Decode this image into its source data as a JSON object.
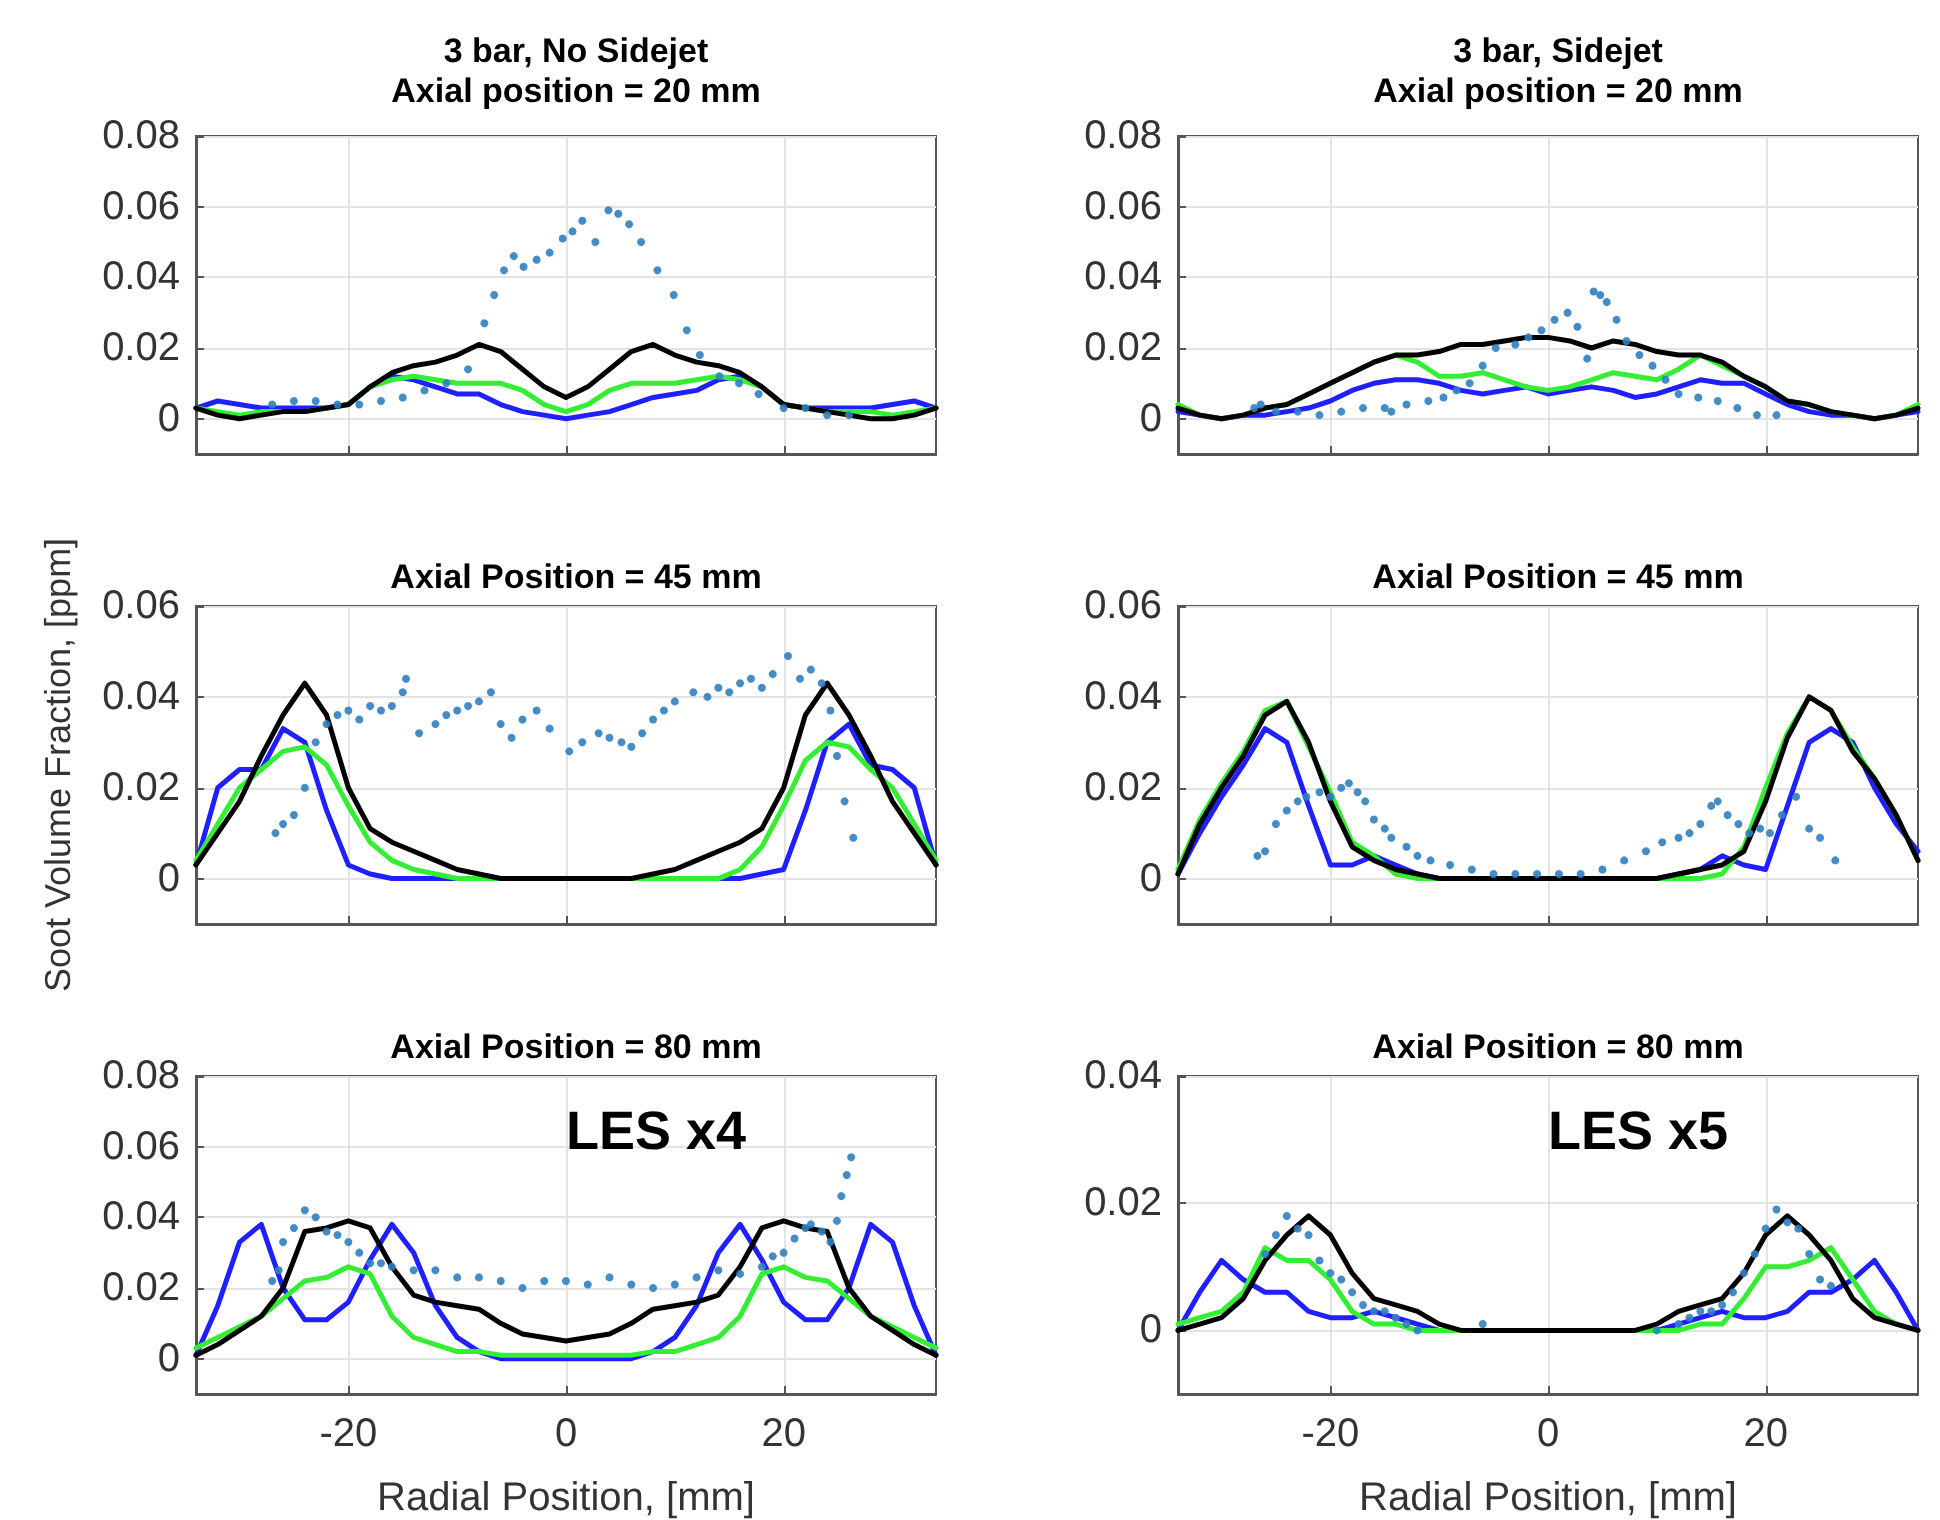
{
  "chart_data": [
    {
      "type": "line",
      "title": "3 bar, No Sidejet",
      "subtitle": "Axial position = 20 mm",
      "xlim": [
        -34,
        34
      ],
      "xticks": [
        -20,
        0,
        20
      ],
      "ylim": [
        -0.01,
        0.08
      ],
      "yticks": [
        0,
        0.02,
        0.04,
        0.06,
        0.08
      ],
      "grid": true,
      "tick_labels": "y",
      "x": [
        -34,
        -32,
        -30,
        -28,
        -26,
        -24,
        -22,
        -20,
        -18,
        -16,
        -14,
        -12,
        -10,
        -8,
        -6,
        -4,
        -2,
        0,
        2,
        4,
        6,
        8,
        10,
        12,
        14,
        16,
        18,
        20,
        22,
        24,
        26,
        28,
        30,
        32,
        34
      ],
      "series": [
        {
          "type": "scatter",
          "marker": "circle",
          "color": "#3080c0",
          "x": [
            -27,
            -25,
            -23,
            -21,
            -19,
            -17,
            -15,
            -13,
            -11,
            -9,
            -7.5,
            -6.6,
            -5.7,
            -4.8,
            -3.9,
            -2.7,
            -1.5,
            -0.3,
            0.6,
            1.5,
            2.7,
            3.9,
            4.8,
            5.8,
            6.9,
            8.4,
            9.9,
            11.1,
            12.3,
            14.1,
            15.9,
            17.7,
            20,
            22,
            24,
            26
          ],
          "values": [
            0.004,
            0.005,
            0.005,
            0.004,
            0.004,
            0.005,
            0.006,
            0.008,
            0.01,
            0.014,
            0.027,
            0.035,
            0.042,
            0.046,
            0.043,
            0.045,
            0.047,
            0.051,
            0.053,
            0.056,
            0.05,
            0.059,
            0.058,
            0.055,
            0.05,
            0.042,
            0.035,
            0.025,
            0.018,
            0.012,
            0.01,
            0.007,
            0.003,
            0.003,
            0.001,
            0.001
          ]
        },
        {
          "type": "line",
          "marker": "none",
          "color": "#1f1fff",
          "values": [
            0.003,
            0.005,
            0.004,
            0.003,
            0.003,
            0.003,
            0.003,
            0.004,
            0.009,
            0.012,
            0.011,
            0.009,
            0.007,
            0.007,
            0.004,
            0.002,
            0.001,
            0,
            0.001,
            0.002,
            0.004,
            0.006,
            0.007,
            0.008,
            0.011,
            0.012,
            0.009,
            0.004,
            0.003,
            0.003,
            0.003,
            0.003,
            0.004,
            0.005,
            0.003
          ]
        },
        {
          "type": "line",
          "marker": "none",
          "color": "#33ee33",
          "values": [
            0.003,
            0.002,
            0.001,
            0.002,
            0.002,
            0.002,
            0.003,
            0.004,
            0.009,
            0.011,
            0.012,
            0.011,
            0.01,
            0.01,
            0.01,
            0.008,
            0.004,
            0.002,
            0.004,
            0.008,
            0.01,
            0.01,
            0.01,
            0.011,
            0.012,
            0.011,
            0.009,
            0.004,
            0.003,
            0.002,
            0.002,
            0.002,
            0.001,
            0.002,
            0.003
          ]
        },
        {
          "type": "line",
          "marker": "none",
          "color": "#000000",
          "values": [
            0.003,
            0.001,
            0,
            0.001,
            0.002,
            0.002,
            0.003,
            0.004,
            0.009,
            0.013,
            0.015,
            0.016,
            0.018,
            0.021,
            0.019,
            0.014,
            0.009,
            0.006,
            0.009,
            0.014,
            0.019,
            0.021,
            0.018,
            0.016,
            0.015,
            0.013,
            0.009,
            0.004,
            0.003,
            0.002,
            0.001,
            0,
            0,
            0.001,
            0.003
          ]
        }
      ]
    },
    {
      "type": "line",
      "title": "3 bar, Sidejet",
      "subtitle": "Axial position = 20 mm",
      "xlim": [
        -34,
        34
      ],
      "xticks": [
        -20,
        0,
        20
      ],
      "ylim": [
        -0.01,
        0.08
      ],
      "yticks": [
        0,
        0.02,
        0.04,
        0.06,
        0.08
      ],
      "grid": true,
      "tick_labels": "y",
      "x": [
        -34,
        -32,
        -30,
        -28,
        -26,
        -24,
        -22,
        -20,
        -18,
        -16,
        -14,
        -12,
        -10,
        -8,
        -6,
        -4,
        -2,
        0,
        2,
        4,
        6,
        8,
        10,
        12,
        14,
        16,
        18,
        20,
        22,
        24,
        26,
        28,
        30,
        32,
        34
      ],
      "series": [
        {
          "type": "scatter",
          "marker": "circle",
          "color": "#3080c0",
          "x": [
            -27,
            -26.4,
            -25,
            -23,
            -21,
            -19,
            -17,
            -15,
            -14.4,
            -13,
            -11,
            -9.6,
            -8.4,
            -7.2,
            -6,
            -4.8,
            -3,
            -1.8,
            -0.6,
            0.6,
            1.8,
            2.7,
            3.6,
            4.2,
            4.8,
            5.4,
            6.3,
            7.2,
            8.4,
            9.6,
            10.8,
            12,
            13.8,
            15.6,
            17.4,
            19.2,
            21
          ],
          "values": [
            0.003,
            0.004,
            0.002,
            0.002,
            0.001,
            0.002,
            0.003,
            0.003,
            0.002,
            0.004,
            0.005,
            0.006,
            0.008,
            0.01,
            0.015,
            0.02,
            0.021,
            0.023,
            0.025,
            0.028,
            0.03,
            0.026,
            0.017,
            0.036,
            0.035,
            0.033,
            0.028,
            0.022,
            0.018,
            0.015,
            0.011,
            0.007,
            0.006,
            0.005,
            0.003,
            0.001,
            0.001
          ]
        },
        {
          "type": "line",
          "marker": "none",
          "color": "#1f1fff",
          "values": [
            0.002,
            0.001,
            0,
            0.001,
            0.001,
            0.002,
            0.003,
            0.005,
            0.008,
            0.01,
            0.011,
            0.011,
            0.01,
            0.008,
            0.007,
            0.008,
            0.009,
            0.007,
            0.008,
            0.009,
            0.008,
            0.006,
            0.007,
            0.009,
            0.011,
            0.01,
            0.01,
            0.007,
            0.004,
            0.002,
            0.001,
            0.001,
            0,
            0.001,
            0.002
          ]
        },
        {
          "type": "line",
          "marker": "none",
          "color": "#33ee33",
          "values": [
            0.004,
            0.001,
            0,
            0.001,
            0.003,
            0.004,
            0.007,
            0.01,
            0.013,
            0.016,
            0.018,
            0.016,
            0.012,
            0.012,
            0.013,
            0.011,
            0.009,
            0.008,
            0.009,
            0.011,
            0.013,
            0.012,
            0.011,
            0.014,
            0.018,
            0.015,
            0.012,
            0.009,
            0.005,
            0.004,
            0.002,
            0.001,
            0,
            0.001,
            0.004
          ]
        },
        {
          "type": "line",
          "marker": "none",
          "color": "#000000",
          "values": [
            0.003,
            0.001,
            0,
            0.001,
            0.003,
            0.004,
            0.007,
            0.01,
            0.013,
            0.016,
            0.018,
            0.018,
            0.019,
            0.021,
            0.021,
            0.022,
            0.023,
            0.023,
            0.022,
            0.02,
            0.022,
            0.021,
            0.019,
            0.018,
            0.018,
            0.016,
            0.012,
            0.009,
            0.005,
            0.004,
            0.002,
            0.001,
            0,
            0.001,
            0.003
          ]
        }
      ]
    },
    {
      "type": "line",
      "title": "Axial Position = 45 mm",
      "ylabel": "Soot Volume Fraction, [ppm]",
      "xlim": [
        -34,
        34
      ],
      "xticks": [
        -20,
        0,
        20
      ],
      "ylim": [
        -0.01,
        0.06
      ],
      "yticks": [
        0,
        0.02,
        0.04,
        0.06
      ],
      "grid": true,
      "tick_labels": "y",
      "x": [
        -34,
        -32,
        -30,
        -28,
        -26,
        -24,
        -22,
        -20,
        -18,
        -16,
        -14,
        -12,
        -10,
        -8,
        -6,
        -4,
        -2,
        0,
        2,
        4,
        6,
        8,
        10,
        12,
        14,
        16,
        18,
        20,
        22,
        24,
        26,
        28,
        30,
        32,
        34
      ],
      "series": [
        {
          "type": "scatter",
          "marker": "circle",
          "color": "#3080c0",
          "x": [
            -26.7,
            -26,
            -25,
            -24,
            -23,
            -22,
            -21,
            -20,
            -19,
            -18,
            -17,
            -16,
            -15,
            -14.7,
            -13.5,
            -12,
            -11,
            -10,
            -9,
            -8,
            -6.9,
            -6,
            -5,
            -4,
            -2.7,
            -1.5,
            0.3,
            1.5,
            3,
            4,
            5.1,
            6,
            7,
            8,
            9,
            10,
            11.7,
            13,
            14,
            15,
            16,
            17,
            18,
            19,
            20.4,
            21.5,
            22.5,
            23.5,
            24.3,
            24.9,
            25.6,
            26.4
          ],
          "values": [
            0.01,
            0.012,
            0.014,
            0.02,
            0.03,
            0.034,
            0.036,
            0.037,
            0.035,
            0.038,
            0.037,
            0.038,
            0.041,
            0.044,
            0.032,
            0.034,
            0.036,
            0.037,
            0.038,
            0.039,
            0.041,
            0.034,
            0.031,
            0.035,
            0.037,
            0.033,
            0.028,
            0.03,
            0.032,
            0.031,
            0.03,
            0.029,
            0.032,
            0.035,
            0.037,
            0.039,
            0.041,
            0.04,
            0.042,
            0.041,
            0.043,
            0.044,
            0.042,
            0.045,
            0.049,
            0.044,
            0.046,
            0.043,
            0.037,
            0.027,
            0.017,
            0.009
          ]
        },
        {
          "type": "line",
          "marker": "none",
          "color": "#1f1fff",
          "values": [
            0.003,
            0.02,
            0.024,
            0.024,
            0.033,
            0.03,
            0.015,
            0.003,
            0.001,
            0,
            0,
            0,
            0,
            0,
            0,
            0,
            0,
            0,
            0,
            0,
            0,
            0,
            0,
            0,
            0,
            0,
            0.001,
            0.002,
            0.015,
            0.03,
            0.034,
            0.025,
            0.024,
            0.02,
            0.003
          ]
        },
        {
          "type": "line",
          "marker": "none",
          "color": "#33ee33",
          "values": [
            0.004,
            0.012,
            0.02,
            0.024,
            0.028,
            0.029,
            0.025,
            0.016,
            0.008,
            0.004,
            0.002,
            0.001,
            0,
            0,
            0,
            0,
            0,
            0,
            0,
            0,
            0,
            0,
            0,
            0,
            0,
            0.002,
            0.007,
            0.016,
            0.026,
            0.03,
            0.029,
            0.024,
            0.02,
            0.012,
            0.004
          ]
        },
        {
          "type": "line",
          "marker": "none",
          "color": "#000000",
          "values": [
            0.003,
            0.01,
            0.017,
            0.027,
            0.036,
            0.043,
            0.036,
            0.02,
            0.011,
            0.008,
            0.006,
            0.004,
            0.002,
            0.001,
            0,
            0,
            0,
            0,
            0,
            0,
            0,
            0.001,
            0.002,
            0.004,
            0.006,
            0.008,
            0.011,
            0.02,
            0.036,
            0.043,
            0.036,
            0.027,
            0.017,
            0.01,
            0.003
          ]
        }
      ]
    },
    {
      "type": "line",
      "title": "Axial Position = 45 mm",
      "xlim": [
        -34,
        34
      ],
      "xticks": [
        -20,
        0,
        20
      ],
      "ylim": [
        -0.01,
        0.06
      ],
      "yticks": [
        0,
        0.02,
        0.04,
        0.06
      ],
      "grid": true,
      "tick_labels": "y",
      "x": [
        -34,
        -32,
        -30,
        -28,
        -26,
        -24,
        -22,
        -20,
        -18,
        -16,
        -14,
        -12,
        -10,
        -8,
        -6,
        -4,
        -2,
        0,
        2,
        4,
        6,
        8,
        10,
        12,
        14,
        16,
        18,
        20,
        22,
        24,
        26,
        28,
        30,
        32,
        34
      ],
      "series": [
        {
          "type": "scatter",
          "marker": "circle",
          "color": "#3080c0",
          "x": [
            -26.7,
            -26,
            -25,
            -24,
            -23,
            -22.2,
            -21,
            -20,
            -19,
            -18.3,
            -17.5,
            -16.8,
            -16,
            -15,
            -14.4,
            -13,
            -12,
            -10.8,
            -9,
            -7,
            -5,
            -3,
            -1,
            1,
            3,
            5,
            7,
            9,
            10.5,
            12,
            13,
            14,
            15,
            15.6,
            16.5,
            17.5,
            18.5,
            19.5,
            20.4,
            21.5,
            22.8,
            24,
            25,
            26.4
          ],
          "values": [
            0.005,
            0.006,
            0.012,
            0.015,
            0.017,
            0.018,
            0.019,
            0.018,
            0.02,
            0.021,
            0.019,
            0.017,
            0.013,
            0.011,
            0.009,
            0.007,
            0.005,
            0.004,
            0.003,
            0.002,
            0.001,
            0.001,
            0.001,
            0.001,
            0.001,
            0.002,
            0.004,
            0.006,
            0.008,
            0.009,
            0.01,
            0.012,
            0.016,
            0.017,
            0.014,
            0.012,
            0.01,
            0.011,
            0.01,
            0.014,
            0.018,
            0.011,
            0.009,
            0.004
          ]
        },
        {
          "type": "line",
          "marker": "none",
          "color": "#1f1fff",
          "values": [
            0.001,
            0.01,
            0.018,
            0.025,
            0.033,
            0.03,
            0.016,
            0.003,
            0.003,
            0.005,
            0.003,
            0.001,
            0,
            0,
            0,
            0,
            0,
            0,
            0,
            0,
            0,
            0,
            0,
            0.001,
            0.002,
            0.005,
            0.003,
            0.002,
            0.016,
            0.03,
            0.033,
            0.03,
            0.02,
            0.012,
            0.006
          ]
        },
        {
          "type": "line",
          "marker": "none",
          "color": "#33ee33",
          "values": [
            0.002,
            0.013,
            0.021,
            0.028,
            0.037,
            0.039,
            0.029,
            0.019,
            0.008,
            0.005,
            0.001,
            0,
            0,
            0,
            0,
            0,
            0,
            0,
            0,
            0,
            0,
            0,
            0,
            0,
            0,
            0.001,
            0.007,
            0.02,
            0.032,
            0.04,
            0.037,
            0.029,
            0.022,
            0.014,
            0.004
          ]
        },
        {
          "type": "line",
          "marker": "none",
          "color": "#000000",
          "values": [
            0.001,
            0.012,
            0.02,
            0.027,
            0.036,
            0.039,
            0.03,
            0.017,
            0.007,
            0.004,
            0.002,
            0.001,
            0,
            0,
            0,
            0,
            0,
            0,
            0,
            0,
            0,
            0,
            0,
            0.001,
            0.002,
            0.003,
            0.006,
            0.017,
            0.031,
            0.04,
            0.037,
            0.028,
            0.022,
            0.014,
            0.004
          ]
        }
      ]
    },
    {
      "type": "line",
      "title": "Axial Position = 80 mm",
      "xlabel": "Radial Position, [mm]",
      "annotations": [
        "LES x4"
      ],
      "xlim": [
        -34,
        34
      ],
      "xticks": [
        -20,
        0,
        20
      ],
      "ylim": [
        -0.01,
        0.08
      ],
      "yticks": [
        0,
        0.02,
        0.04,
        0.06,
        0.08
      ],
      "grid": true,
      "x": [
        -34,
        -32,
        -30,
        -28,
        -26,
        -24,
        -22,
        -20,
        -18,
        -16,
        -14,
        -12,
        -10,
        -8,
        -6,
        -4,
        -2,
        0,
        2,
        4,
        6,
        8,
        10,
        12,
        14,
        16,
        18,
        20,
        22,
        24,
        26,
        28,
        30,
        32,
        34
      ],
      "series": [
        {
          "type": "scatter",
          "marker": "circle",
          "color": "#3080c0",
          "x": [
            -27,
            -26.4,
            -26,
            -25,
            -24,
            -23,
            -22,
            -21,
            -20,
            -19,
            -18,
            -17,
            -16,
            -14,
            -12,
            -10,
            -8,
            -6,
            -4,
            -2,
            0,
            2,
            4,
            6,
            8,
            10,
            12,
            14,
            16,
            18,
            19,
            20,
            21,
            22,
            22.5,
            23.5,
            24.3,
            24.9,
            25.3,
            25.8,
            26.2
          ],
          "values": [
            0.022,
            0.025,
            0.033,
            0.037,
            0.042,
            0.04,
            0.036,
            0.035,
            0.033,
            0.03,
            0.027,
            0.027,
            0.026,
            0.025,
            0.025,
            0.023,
            0.023,
            0.022,
            0.02,
            0.022,
            0.022,
            0.021,
            0.023,
            0.021,
            0.02,
            0.021,
            0.023,
            0.025,
            0.024,
            0.026,
            0.029,
            0.03,
            0.034,
            0.037,
            0.038,
            0.036,
            0.033,
            0.039,
            0.046,
            0.052,
            0.057
          ]
        },
        {
          "type": "line",
          "marker": "none",
          "color": "#1f1fff",
          "values": [
            0.001,
            0.015,
            0.033,
            0.038,
            0.02,
            0.011,
            0.011,
            0.016,
            0.028,
            0.038,
            0.03,
            0.015,
            0.006,
            0.002,
            0,
            0,
            0,
            0,
            0,
            0,
            0,
            0.002,
            0.006,
            0.015,
            0.03,
            0.038,
            0.028,
            0.016,
            0.011,
            0.011,
            0.02,
            0.038,
            0.033,
            0.015,
            0.001
          ]
        },
        {
          "type": "line",
          "marker": "none",
          "color": "#33ee33",
          "values": [
            0.003,
            0.006,
            0.009,
            0.012,
            0.017,
            0.022,
            0.023,
            0.026,
            0.024,
            0.012,
            0.006,
            0.004,
            0.002,
            0.002,
            0.001,
            0.001,
            0.001,
            0.001,
            0.001,
            0.001,
            0.001,
            0.002,
            0.002,
            0.004,
            0.006,
            0.012,
            0.024,
            0.026,
            0.023,
            0.022,
            0.017,
            0.012,
            0.009,
            0.006,
            0.003
          ]
        },
        {
          "type": "line",
          "marker": "none",
          "color": "#000000",
          "values": [
            0.001,
            0.004,
            0.008,
            0.012,
            0.02,
            0.036,
            0.037,
            0.039,
            0.037,
            0.026,
            0.018,
            0.016,
            0.015,
            0.014,
            0.01,
            0.007,
            0.006,
            0.005,
            0.006,
            0.007,
            0.01,
            0.014,
            0.015,
            0.016,
            0.018,
            0.026,
            0.037,
            0.039,
            0.037,
            0.036,
            0.02,
            0.012,
            0.008,
            0.004,
            0.001
          ]
        }
      ]
    },
    {
      "type": "line",
      "title": "Axial Position = 80 mm",
      "xlabel": "Radial Position, [mm]",
      "annotations": [
        "LES x5"
      ],
      "xlim": [
        -34,
        34
      ],
      "xticks": [
        -20,
        0,
        20
      ],
      "ylim": [
        -0.01,
        0.04
      ],
      "yticks": [
        0,
        0.02,
        0.04
      ],
      "grid": true,
      "x": [
        -34,
        -32,
        -30,
        -28,
        -26,
        -24,
        -22,
        -20,
        -18,
        -16,
        -14,
        -12,
        -10,
        -8,
        -6,
        -4,
        -2,
        0,
        2,
        4,
        6,
        8,
        10,
        12,
        14,
        16,
        18,
        20,
        22,
        24,
        26,
        28,
        30,
        32,
        34
      ],
      "series": [
        {
          "type": "scatter",
          "marker": "circle",
          "color": "#3080c0",
          "x": [
            -26,
            -25,
            -24,
            -23,
            -22,
            -21,
            -20,
            -19,
            -18,
            -17,
            -16,
            -15,
            -14,
            -13,
            -12,
            -6,
            10,
            12,
            13,
            14,
            15,
            16,
            17,
            18,
            19,
            20,
            21,
            22,
            23,
            24,
            25,
            26
          ],
          "values": [
            0.012,
            0.015,
            0.018,
            0.016,
            0.015,
            0.011,
            0.009,
            0.008,
            0.006,
            0.004,
            0.003,
            0.003,
            0.002,
            0.001,
            0,
            0.001,
            0,
            0.001,
            0.002,
            0.003,
            0.003,
            0.004,
            0.006,
            0.009,
            0.012,
            0.016,
            0.019,
            0.017,
            0.016,
            0.012,
            0.008,
            0.007
          ]
        },
        {
          "type": "line",
          "marker": "none",
          "color": "#1f1fff",
          "values": [
            0,
            0.006,
            0.011,
            0.008,
            0.006,
            0.006,
            0.003,
            0.002,
            0.002,
            0.003,
            0.002,
            0.001,
            0,
            0,
            0,
            0,
            0,
            0,
            0,
            0,
            0,
            0,
            0,
            0.001,
            0.002,
            0.003,
            0.002,
            0.002,
            0.003,
            0.006,
            0.006,
            0.008,
            0.011,
            0.006,
            0
          ]
        },
        {
          "type": "line",
          "marker": "none",
          "color": "#33ee33",
          "values": [
            0.001,
            0.002,
            0.003,
            0.006,
            0.013,
            0.011,
            0.011,
            0.008,
            0.003,
            0.001,
            0.001,
            0,
            0,
            0,
            0,
            0,
            0,
            0,
            0,
            0,
            0,
            0,
            0,
            0,
            0.001,
            0.001,
            0.005,
            0.01,
            0.01,
            0.011,
            0.013,
            0.008,
            0.003,
            0.001,
            0
          ]
        },
        {
          "type": "line",
          "marker": "none",
          "color": "#000000",
          "values": [
            0,
            0.001,
            0.002,
            0.005,
            0.011,
            0.015,
            0.018,
            0.015,
            0.009,
            0.005,
            0.004,
            0.003,
            0.001,
            0,
            0,
            0,
            0,
            0,
            0,
            0,
            0,
            0,
            0.001,
            0.003,
            0.004,
            0.005,
            0.009,
            0.015,
            0.018,
            0.015,
            0.011,
            0.005,
            0.002,
            0.001,
            0
          ]
        }
      ]
    }
  ]
}
